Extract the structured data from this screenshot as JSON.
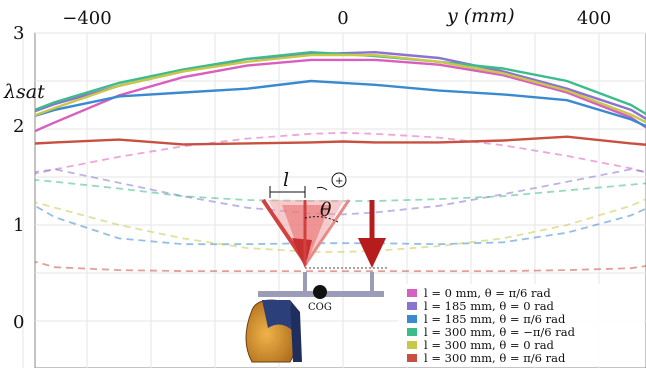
{
  "chart_data": {
    "type": "line",
    "title": "",
    "xlabel": "y (mm)",
    "ylabel": "λsat",
    "x_ticks": [
      "−400",
      "0",
      "400"
    ],
    "y_ticks": [
      "3",
      "2",
      "1",
      "0"
    ],
    "xlim": [
      -560,
      500
    ],
    "ylim": [
      0,
      3
    ],
    "grid": true,
    "legend_position": "bottom-right",
    "series": [
      {
        "name": "l = 0 mm, θ = π/6 rad",
        "color": "#d85fbf",
        "x": [
          -560,
          -450,
          -350,
          -250,
          -150,
          -50,
          0,
          50,
          150,
          250,
          350,
          450,
          500
        ],
        "solid": [
          1.75,
          2.07,
          2.35,
          2.54,
          2.66,
          2.72,
          2.72,
          2.72,
          2.67,
          2.56,
          2.38,
          2.12,
          1.9
        ],
        "dashed": [
          1.42,
          1.58,
          1.71,
          1.82,
          1.9,
          1.95,
          1.96,
          1.95,
          1.91,
          1.83,
          1.72,
          1.59,
          1.5
        ]
      },
      {
        "name": "l = 185 mm, θ = 0 rad",
        "color": "#8a73d0",
        "x": [
          -560,
          -450,
          -350,
          -250,
          -150,
          -50,
          0,
          50,
          150,
          250,
          350,
          450,
          500
        ],
        "solid": [
          2.0,
          2.26,
          2.45,
          2.6,
          2.73,
          2.78,
          2.79,
          2.8,
          2.74,
          2.6,
          2.42,
          2.2,
          2.0
        ],
        "dashed": [
          1.48,
          1.58,
          1.44,
          1.3,
          1.18,
          1.12,
          1.11,
          1.13,
          1.2,
          1.32,
          1.45,
          1.58,
          1.52
        ]
      },
      {
        "name": "l = 185 mm, θ = π/6 rad",
        "color": "#3a8ad0",
        "x": [
          -560,
          -450,
          -350,
          -250,
          -150,
          -50,
          0,
          50,
          150,
          250,
          350,
          450,
          500
        ],
        "solid": [
          1.98,
          2.2,
          2.34,
          2.38,
          2.42,
          2.5,
          2.48,
          2.46,
          2.4,
          2.36,
          2.3,
          2.1,
          1.95
        ],
        "dashed": [
          1.5,
          1.08,
          0.86,
          0.8,
          0.8,
          0.81,
          0.81,
          0.81,
          0.8,
          0.82,
          0.92,
          1.1,
          1.25
        ]
      },
      {
        "name": "l = 300 mm, θ = −π/6 rad",
        "color": "#3dbc8b",
        "x": [
          -560,
          -450,
          -350,
          -250,
          -150,
          -50,
          0,
          50,
          150,
          250,
          350,
          450,
          500
        ],
        "solid": [
          2.0,
          2.28,
          2.48,
          2.62,
          2.73,
          2.8,
          2.78,
          2.76,
          2.7,
          2.63,
          2.5,
          2.25,
          2.05
        ],
        "dashed": [
          1.52,
          1.45,
          1.38,
          1.3,
          1.26,
          1.25,
          1.25,
          1.25,
          1.27,
          1.3,
          1.36,
          1.42,
          1.45
        ]
      },
      {
        "name": "l = 300 mm, θ = 0 rad",
        "color": "#c9c74a",
        "x": [
          -560,
          -450,
          -350,
          -250,
          -150,
          -50,
          0,
          50,
          150,
          250,
          350,
          450,
          500
        ],
        "solid": [
          1.95,
          2.22,
          2.45,
          2.6,
          2.7,
          2.77,
          2.77,
          2.77,
          2.7,
          2.58,
          2.4,
          2.15,
          1.98
        ],
        "dashed": [
          1.38,
          1.18,
          1.0,
          0.86,
          0.76,
          0.72,
          0.72,
          0.73,
          0.78,
          0.86,
          1.0,
          1.2,
          1.35
        ]
      },
      {
        "name": "l = 300 mm, θ = π/6 rad",
        "color": "#c85040",
        "x": [
          -560,
          -450,
          -350,
          -250,
          -150,
          -50,
          0,
          50,
          150,
          250,
          350,
          450,
          500
        ],
        "solid": [
          1.82,
          1.86,
          1.89,
          1.84,
          1.85,
          1.86,
          1.87,
          1.86,
          1.86,
          1.88,
          1.92,
          1.85,
          1.82
        ],
        "dashed": [
          0.76,
          0.56,
          0.53,
          0.52,
          0.52,
          0.52,
          0.52,
          0.52,
          0.52,
          0.52,
          0.53,
          0.55,
          0.6
        ]
      }
    ],
    "annotations": {
      "diagram_l": "l",
      "diagram_theta": "θ",
      "diagram_plus": "+",
      "diagram_cog": "COG"
    }
  }
}
